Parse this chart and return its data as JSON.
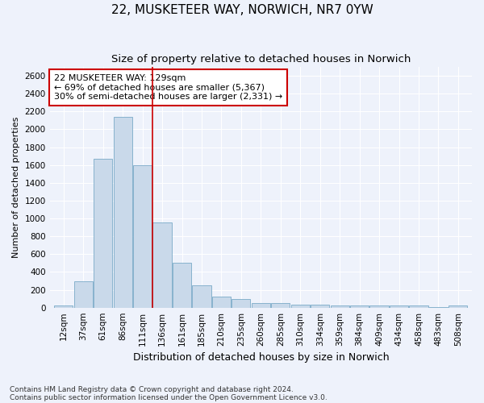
{
  "title_line1": "22, MUSKETEER WAY, NORWICH, NR7 0YW",
  "title_line2": "Size of property relative to detached houses in Norwich",
  "xlabel": "Distribution of detached houses by size in Norwich",
  "ylabel": "Number of detached properties",
  "bar_color": "#c9d9ea",
  "bar_edge_color": "#7aaac8",
  "categories": [
    "12sqm",
    "37sqm",
    "61sqm",
    "86sqm",
    "111sqm",
    "136sqm",
    "161sqm",
    "185sqm",
    "210sqm",
    "235sqm",
    "260sqm",
    "285sqm",
    "310sqm",
    "334sqm",
    "359sqm",
    "384sqm",
    "409sqm",
    "434sqm",
    "458sqm",
    "483sqm",
    "508sqm"
  ],
  "values": [
    25,
    300,
    1670,
    2140,
    1600,
    960,
    500,
    250,
    120,
    100,
    50,
    50,
    35,
    35,
    20,
    20,
    20,
    20,
    20,
    8,
    25
  ],
  "ylim": [
    0,
    2700
  ],
  "yticks": [
    0,
    200,
    400,
    600,
    800,
    1000,
    1200,
    1400,
    1600,
    1800,
    2000,
    2200,
    2400,
    2600
  ],
  "vline_x": 4.5,
  "vline_color": "#cc0000",
  "annotation_text": "22 MUSKETEER WAY: 129sqm\n← 69% of detached houses are smaller (5,367)\n30% of semi-detached houses are larger (2,331) →",
  "annotation_box_color": "#ffffff",
  "annotation_box_edge_color": "#cc0000",
  "footnote1": "Contains HM Land Registry data © Crown copyright and database right 2024.",
  "footnote2": "Contains public sector information licensed under the Open Government Licence v3.0.",
  "background_color": "#eef2fb",
  "grid_color": "#ffffff",
  "title1_fontsize": 11,
  "title2_fontsize": 9.5,
  "annotation_fontsize": 8,
  "tick_fontsize": 7.5,
  "ylabel_fontsize": 8,
  "xlabel_fontsize": 9
}
